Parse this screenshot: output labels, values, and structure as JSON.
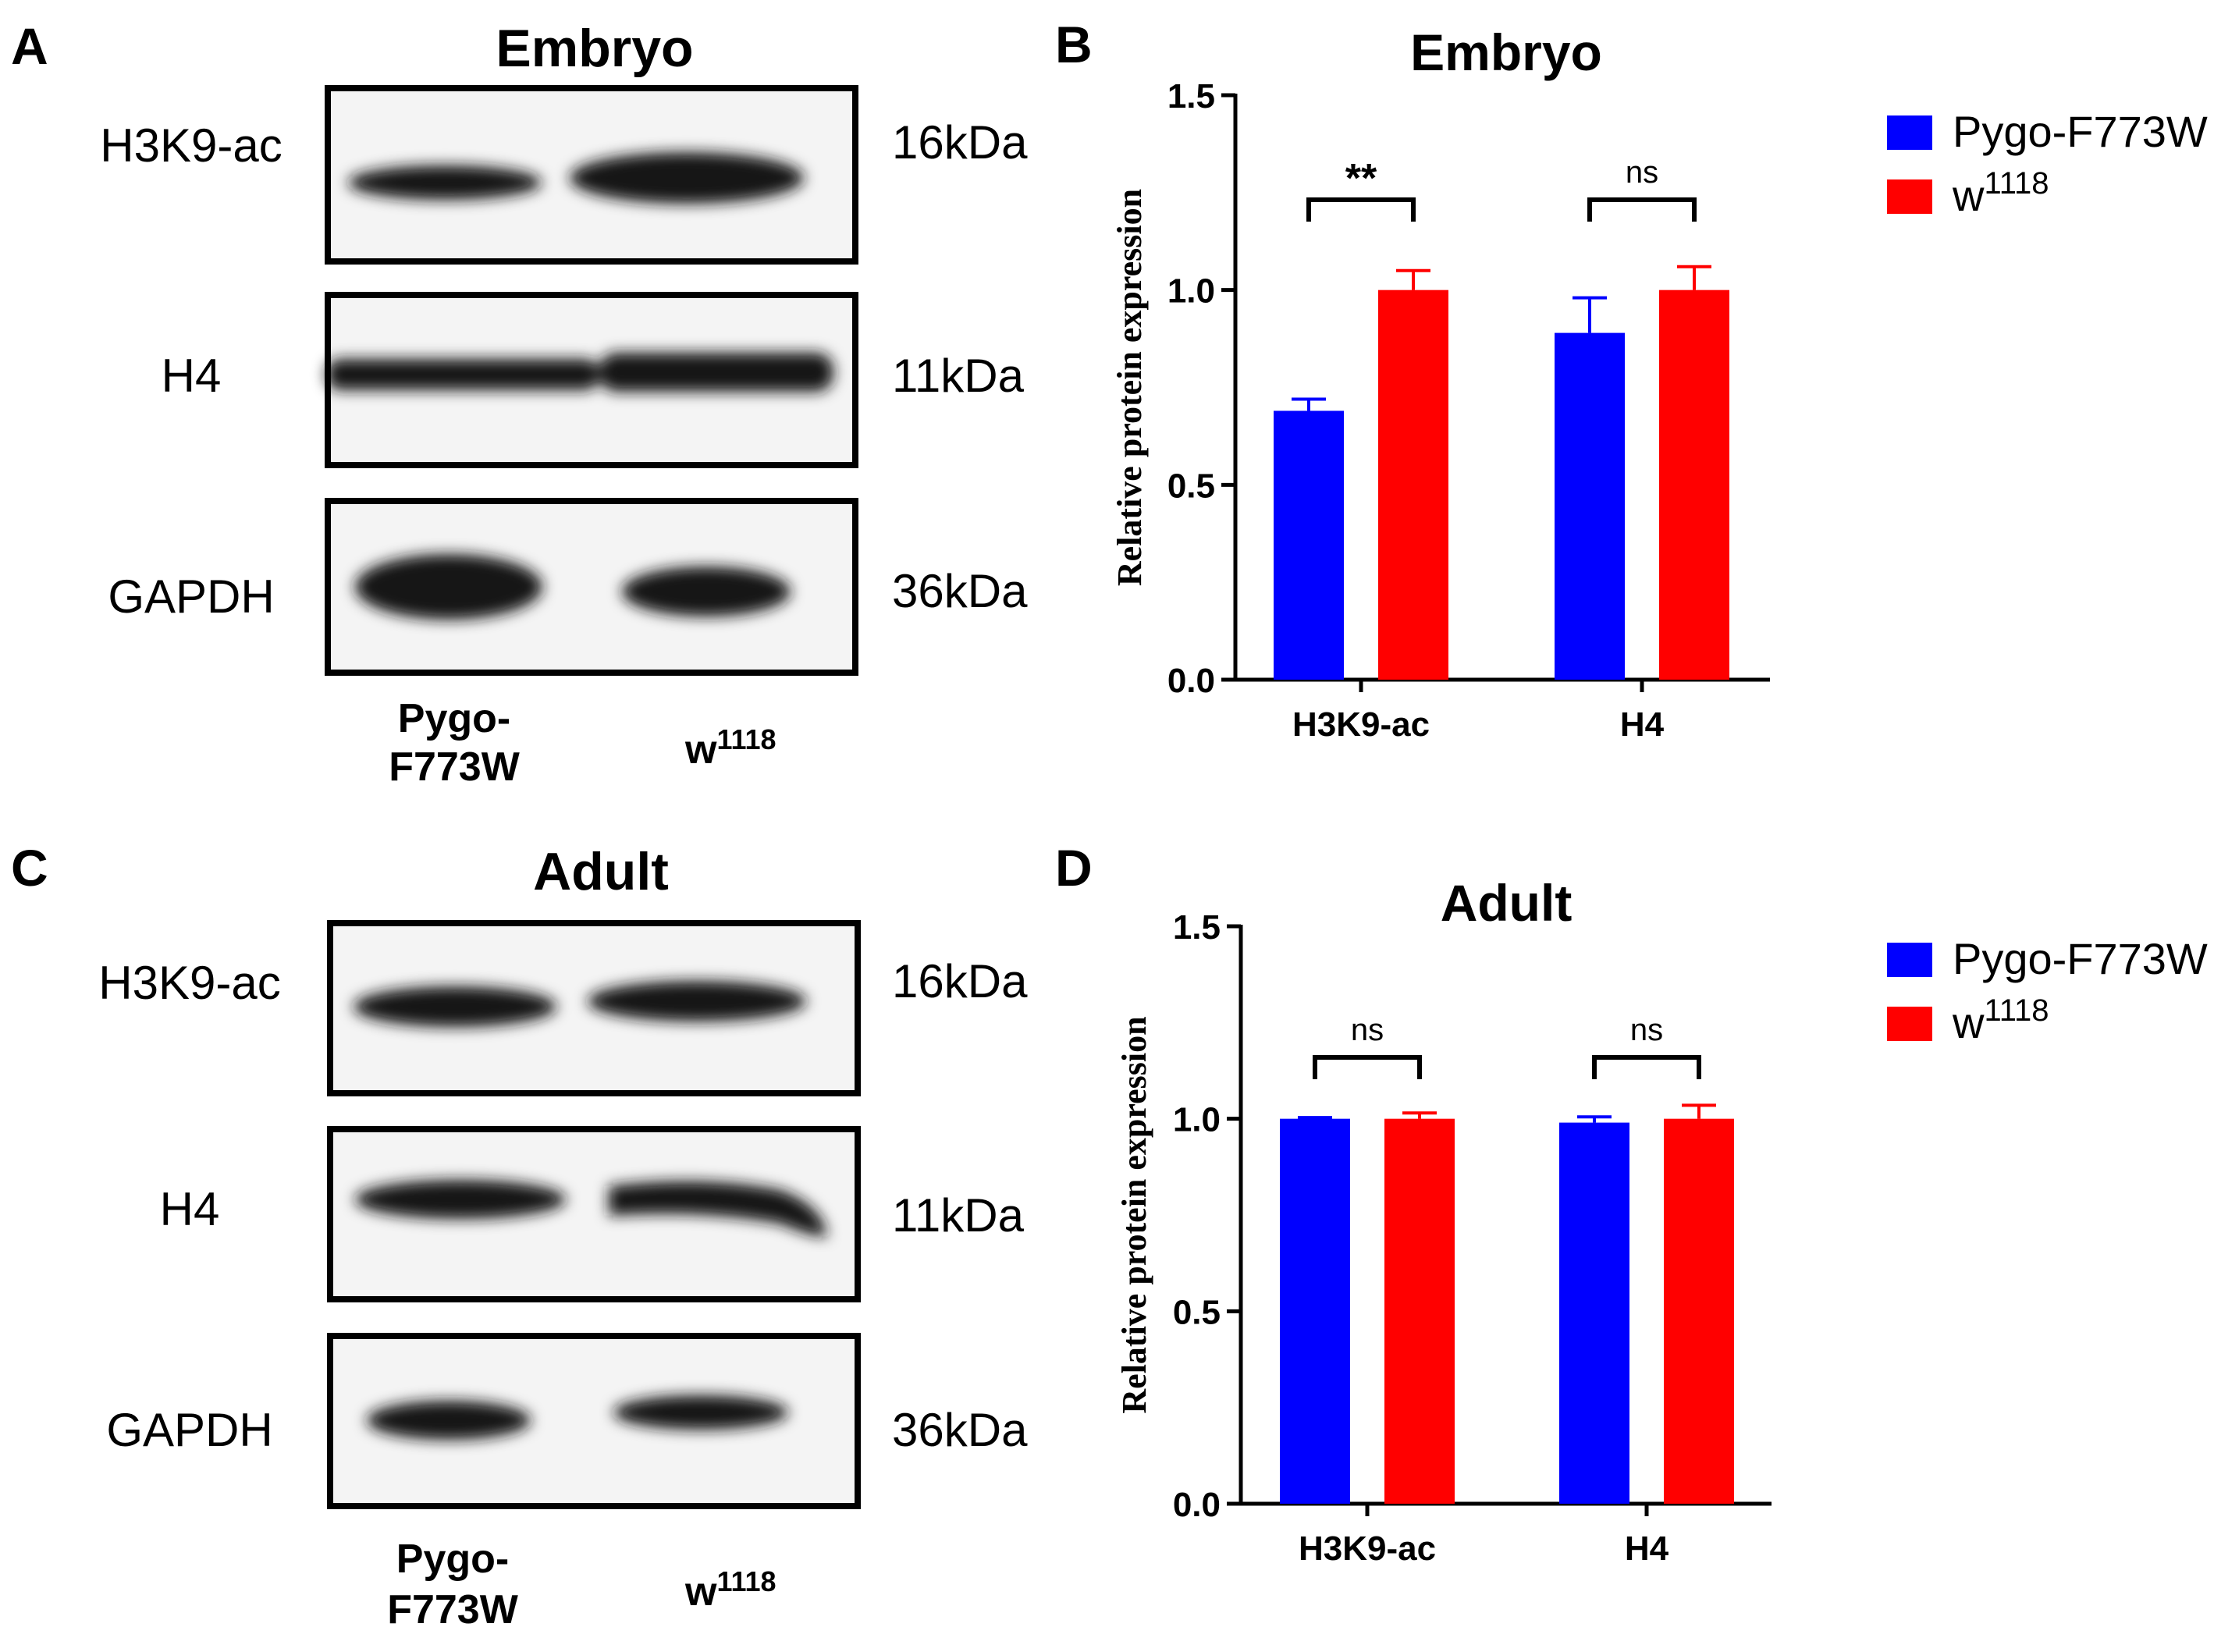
{
  "colors": {
    "series1": "#0000ff",
    "series2": "#ff0000",
    "axis": "#000000",
    "blot_bg": "#f4f4f4",
    "band": "#141414"
  },
  "panels": [
    {
      "letter": "A",
      "title": "Embryo",
      "rows": [
        {
          "label": "H3K9-ac",
          "kda": "16kDa"
        },
        {
          "label": "H4",
          "kda": "11kDa"
        },
        {
          "label": "GAPDH",
          "kda": "36kDa"
        }
      ],
      "lanes": [
        {
          "line1": "Pygo-",
          "line2": "F773W"
        },
        {
          "base": "w",
          "sup": "1118"
        }
      ]
    },
    {
      "letter": "C",
      "title": "Adult",
      "rows": [
        {
          "label": "H3K9-ac",
          "kda": "16kDa"
        },
        {
          "label": "H4",
          "kda": "11kDa"
        },
        {
          "label": "GAPDH",
          "kda": "36kDa"
        }
      ],
      "lanes": [
        {
          "line1": "Pygo-",
          "line2": "F773W"
        },
        {
          "base": "w",
          "sup": "1118"
        }
      ]
    }
  ],
  "chart_data": [
    {
      "panel": "B",
      "type": "bar",
      "title": "Embryo",
      "ylabel": "Relative protein expression",
      "xlabel": "",
      "categories": [
        "H3K9-ac",
        "H4"
      ],
      "ylim": [
        0,
        1.5
      ],
      "yticks": [
        "0.0",
        "0.5",
        "1.0",
        "1.5"
      ],
      "legend_position": "right",
      "series": [
        {
          "name": "Pygo-F773W",
          "values": [
            0.69,
            0.89
          ],
          "errors": [
            0.03,
            0.09
          ]
        },
        {
          "name": "w1118",
          "name_base": "w",
          "name_sup": "1118",
          "values": [
            1.0,
            1.0
          ],
          "errors": [
            0.05,
            0.06
          ]
        }
      ],
      "significance": [
        "**",
        "ns"
      ]
    },
    {
      "panel": "D",
      "type": "bar",
      "title": "Adult",
      "ylabel": "Relative protein expression",
      "xlabel": "",
      "categories": [
        "H3K9-ac",
        "H4"
      ],
      "ylim": [
        0,
        1.5
      ],
      "yticks": [
        "0.0",
        "0.5",
        "1.0",
        "1.5"
      ],
      "legend_position": "right",
      "series": [
        {
          "name": "Pygo-F773W",
          "values": [
            1.0,
            0.99
          ],
          "errors": [
            0.003,
            0.015
          ]
        },
        {
          "name": "w1118",
          "name_base": "w",
          "name_sup": "1118",
          "values": [
            1.0,
            1.0
          ],
          "errors": [
            0.015,
            0.035
          ]
        }
      ],
      "significance": [
        "ns",
        "ns"
      ]
    }
  ]
}
